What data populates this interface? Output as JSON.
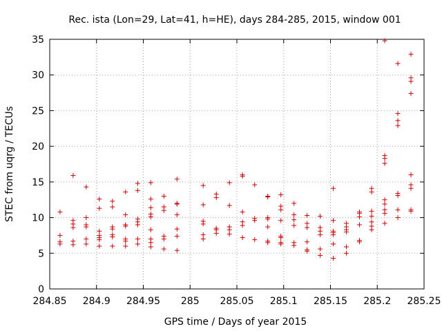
{
  "chart_data": {
    "type": "scatter",
    "title": "Rec. ista (Lon=29, Lat=41, h=HE), days 284-285, 2015, window 001",
    "xlabel": "GPS time / Days of year 2015",
    "ylabel": "STEC from uqrg / TECUs",
    "xlim": [
      284.85,
      285.25
    ],
    "ylim": [
      0,
      35
    ],
    "xticks": [
      284.85,
      284.9,
      284.95,
      285,
      285.05,
      285.1,
      285.15,
      285.2,
      285.25
    ],
    "xtick_labels": [
      "284.85",
      "284.9",
      "284.95",
      "285",
      "285.05",
      "285.1",
      "285.15",
      "285.2",
      "285.25"
    ],
    "yticks": [
      0,
      5,
      10,
      15,
      20,
      25,
      30,
      35
    ],
    "ytick_labels": [
      "0",
      "5",
      "10",
      "15",
      "20",
      "25",
      "30",
      "35"
    ],
    "grid": true,
    "marker": "+",
    "color": "#cc0000",
    "series": [
      {
        "name": "STEC",
        "points": [
          [
            284.861,
            10.8
          ],
          [
            284.861,
            7.5
          ],
          [
            284.861,
            6.6
          ],
          [
            284.861,
            6.3
          ],
          [
            284.875,
            15.9
          ],
          [
            284.875,
            9.6
          ],
          [
            284.875,
            9.1
          ],
          [
            284.875,
            8.6
          ],
          [
            284.875,
            6.7
          ],
          [
            284.875,
            6.2
          ],
          [
            284.889,
            14.3
          ],
          [
            284.889,
            10.0
          ],
          [
            284.889,
            9.0
          ],
          [
            284.889,
            8.7
          ],
          [
            284.889,
            7.0
          ],
          [
            284.889,
            6.3
          ],
          [
            284.903,
            12.6
          ],
          [
            284.903,
            11.3
          ],
          [
            284.903,
            8.1
          ],
          [
            284.903,
            7.5
          ],
          [
            284.903,
            7.2
          ],
          [
            284.903,
            6.9
          ],
          [
            284.903,
            6.0
          ],
          [
            284.917,
            12.3
          ],
          [
            284.917,
            11.5
          ],
          [
            284.917,
            8.7
          ],
          [
            284.917,
            8.4
          ],
          [
            284.917,
            7.6
          ],
          [
            284.917,
            7.3
          ],
          [
            284.917,
            6.0
          ],
          [
            284.931,
            13.6
          ],
          [
            284.931,
            10.4
          ],
          [
            284.931,
            9.0
          ],
          [
            284.931,
            8.8
          ],
          [
            284.931,
            7.0
          ],
          [
            284.931,
            6.7
          ],
          [
            284.931,
            6.0
          ],
          [
            284.944,
            14.8
          ],
          [
            284.944,
            13.8
          ],
          [
            284.944,
            9.8
          ],
          [
            284.944,
            9.4
          ],
          [
            284.944,
            9.0
          ],
          [
            284.944,
            7.0
          ],
          [
            284.944,
            6.3
          ],
          [
            284.958,
            14.9
          ],
          [
            284.958,
            12.6
          ],
          [
            284.958,
            11.4
          ],
          [
            284.958,
            10.5
          ],
          [
            284.958,
            10.1
          ],
          [
            284.958,
            8.3
          ],
          [
            284.958,
            7.0
          ],
          [
            284.958,
            6.5
          ],
          [
            284.958,
            5.9
          ],
          [
            284.972,
            13.0
          ],
          [
            284.972,
            11.5
          ],
          [
            284.972,
            11.0
          ],
          [
            284.972,
            7.4
          ],
          [
            284.972,
            7.0
          ],
          [
            284.972,
            5.6
          ],
          [
            284.986,
            15.4
          ],
          [
            284.986,
            12.0
          ],
          [
            284.986,
            11.9
          ],
          [
            284.986,
            10.4
          ],
          [
            284.986,
            8.4
          ],
          [
            284.986,
            7.4
          ],
          [
            284.986,
            5.4
          ],
          [
            285.014,
            14.5
          ],
          [
            285.014,
            11.8
          ],
          [
            285.014,
            9.5
          ],
          [
            285.014,
            9.1
          ],
          [
            285.014,
            7.6
          ],
          [
            285.014,
            7.0
          ],
          [
            285.028,
            13.3
          ],
          [
            285.028,
            12.8
          ],
          [
            285.028,
            8.5
          ],
          [
            285.028,
            8.3
          ],
          [
            285.028,
            7.8
          ],
          [
            285.042,
            14.9
          ],
          [
            285.042,
            11.7
          ],
          [
            285.042,
            8.7
          ],
          [
            285.042,
            8.3
          ],
          [
            285.042,
            7.7
          ],
          [
            285.056,
            16.0
          ],
          [
            285.056,
            15.8
          ],
          [
            285.056,
            10.8
          ],
          [
            285.056,
            9.4
          ],
          [
            285.056,
            8.9
          ],
          [
            285.056,
            7.2
          ],
          [
            285.069,
            14.6
          ],
          [
            285.069,
            9.9
          ],
          [
            285.069,
            9.6
          ],
          [
            285.069,
            6.9
          ],
          [
            285.083,
            13.0
          ],
          [
            285.083,
            12.9
          ],
          [
            285.083,
            10.0
          ],
          [
            285.083,
            9.8
          ],
          [
            285.083,
            8.7
          ],
          [
            285.083,
            6.7
          ],
          [
            285.083,
            6.5
          ],
          [
            285.097,
            13.2
          ],
          [
            285.097,
            11.6
          ],
          [
            285.097,
            11.1
          ],
          [
            285.097,
            9.6
          ],
          [
            285.097,
            7.4
          ],
          [
            285.097,
            7.2
          ],
          [
            285.097,
            6.5
          ],
          [
            285.097,
            6.3
          ],
          [
            285.111,
            12.0
          ],
          [
            285.111,
            10.4
          ],
          [
            285.111,
            9.7
          ],
          [
            285.111,
            8.9
          ],
          [
            285.111,
            6.5
          ],
          [
            285.111,
            6.1
          ],
          [
            285.125,
            10.3
          ],
          [
            285.125,
            9.2
          ],
          [
            285.125,
            8.6
          ],
          [
            285.125,
            6.6
          ],
          [
            285.125,
            5.5
          ],
          [
            285.125,
            5.3
          ],
          [
            285.139,
            10.2
          ],
          [
            285.139,
            8.6
          ],
          [
            285.139,
            8.1
          ],
          [
            285.139,
            7.6
          ],
          [
            285.139,
            5.6
          ],
          [
            285.139,
            4.7
          ],
          [
            285.153,
            14.1
          ],
          [
            285.153,
            9.6
          ],
          [
            285.153,
            8.1
          ],
          [
            285.153,
            7.9
          ],
          [
            285.153,
            7.6
          ],
          [
            285.153,
            6.3
          ],
          [
            285.153,
            4.3
          ],
          [
            285.167,
            9.2
          ],
          [
            285.167,
            8.7
          ],
          [
            285.167,
            8.3
          ],
          [
            285.167,
            8.0
          ],
          [
            285.167,
            5.9
          ],
          [
            285.167,
            5.0
          ],
          [
            285.181,
            10.8
          ],
          [
            285.181,
            10.6
          ],
          [
            285.181,
            10.1
          ],
          [
            285.181,
            9.0
          ],
          [
            285.181,
            6.8
          ],
          [
            285.181,
            6.6
          ],
          [
            285.194,
            14.1
          ],
          [
            285.194,
            13.6
          ],
          [
            285.194,
            10.9
          ],
          [
            285.194,
            10.2
          ],
          [
            285.194,
            9.4
          ],
          [
            285.194,
            8.8
          ],
          [
            285.194,
            8.3
          ],
          [
            285.208,
            34.8
          ],
          [
            285.208,
            18.7
          ],
          [
            285.208,
            18.3
          ],
          [
            285.208,
            17.6
          ],
          [
            285.208,
            12.5
          ],
          [
            285.208,
            11.9
          ],
          [
            285.208,
            11.1
          ],
          [
            285.208,
            10.6
          ],
          [
            285.208,
            9.2
          ],
          [
            285.222,
            31.6
          ],
          [
            285.222,
            24.6
          ],
          [
            285.222,
            23.6
          ],
          [
            285.222,
            22.9
          ],
          [
            285.222,
            13.4
          ],
          [
            285.222,
            13.1
          ],
          [
            285.222,
            11.1
          ],
          [
            285.222,
            10.0
          ],
          [
            285.236,
            32.9
          ],
          [
            285.236,
            29.6
          ],
          [
            285.236,
            29.1
          ],
          [
            285.236,
            27.4
          ],
          [
            285.236,
            16.0
          ],
          [
            285.236,
            14.6
          ],
          [
            285.236,
            14.1
          ],
          [
            285.236,
            11.1
          ],
          [
            285.236,
            10.9
          ]
        ]
      }
    ]
  }
}
